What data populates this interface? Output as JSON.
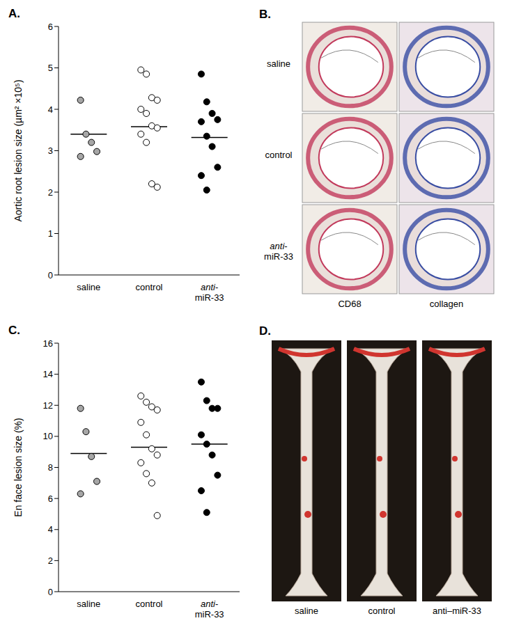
{
  "chart_data": [
    {
      "type": "scatter",
      "panel_label": "A.",
      "y_label": "Aortic root lesion size (µm² ×10⁵)",
      "categories": [
        "saline",
        "control",
        "anti-miR-33"
      ],
      "values": [
        [
          4.22,
          3.4,
          3.2,
          2.98,
          2.86
        ],
        [
          4.95,
          4.85,
          4.28,
          4.22,
          4.0,
          3.9,
          3.6,
          3.55,
          3.4,
          3.2,
          2.2,
          2.12
        ],
        [
          4.85,
          4.18,
          3.9,
          3.75,
          3.7,
          3.35,
          3.1,
          2.6,
          2.4,
          2.05
        ]
      ],
      "means": [
        3.4,
        3.58,
        3.32
      ],
      "colors": [
        "#a6a6a6",
        "#ffffff",
        "#000000"
      ],
      "ylim": [
        0,
        6
      ],
      "yticks": [
        0,
        1,
        2,
        3,
        4,
        5,
        6
      ]
    },
    {
      "type": "scatter",
      "panel_label": "C.",
      "y_label": "En face lesion size (%)",
      "categories": [
        "saline",
        "control",
        "anti-miR-33"
      ],
      "values": [
        [
          11.8,
          10.3,
          8.7,
          7.1,
          6.3
        ],
        [
          12.6,
          12.2,
          11.9,
          11.7,
          10.9,
          10.1,
          9.2,
          8.8,
          8.3,
          7.6,
          7.0,
          4.9
        ],
        [
          13.5,
          12.3,
          11.8,
          11.8,
          10.1,
          9.5,
          8.8,
          7.5,
          6.5,
          5.1
        ]
      ],
      "means": [
        8.9,
        9.3,
        9.5
      ],
      "colors": [
        "#a6a6a6",
        "#ffffff",
        "#000000"
      ],
      "ylim": [
        0,
        16
      ],
      "yticks": [
        0,
        2,
        4,
        6,
        8,
        10,
        12,
        14,
        16
      ]
    }
  ],
  "panels": [
    {
      "panel_label": "B.",
      "rows": [
        "saline",
        "control",
        "anti-miR-33"
      ],
      "columns": [
        "CD68",
        "collagen"
      ]
    },
    {
      "panel_label": "D.",
      "labels": [
        "saline",
        "control",
        "anti–miR-33"
      ]
    }
  ]
}
